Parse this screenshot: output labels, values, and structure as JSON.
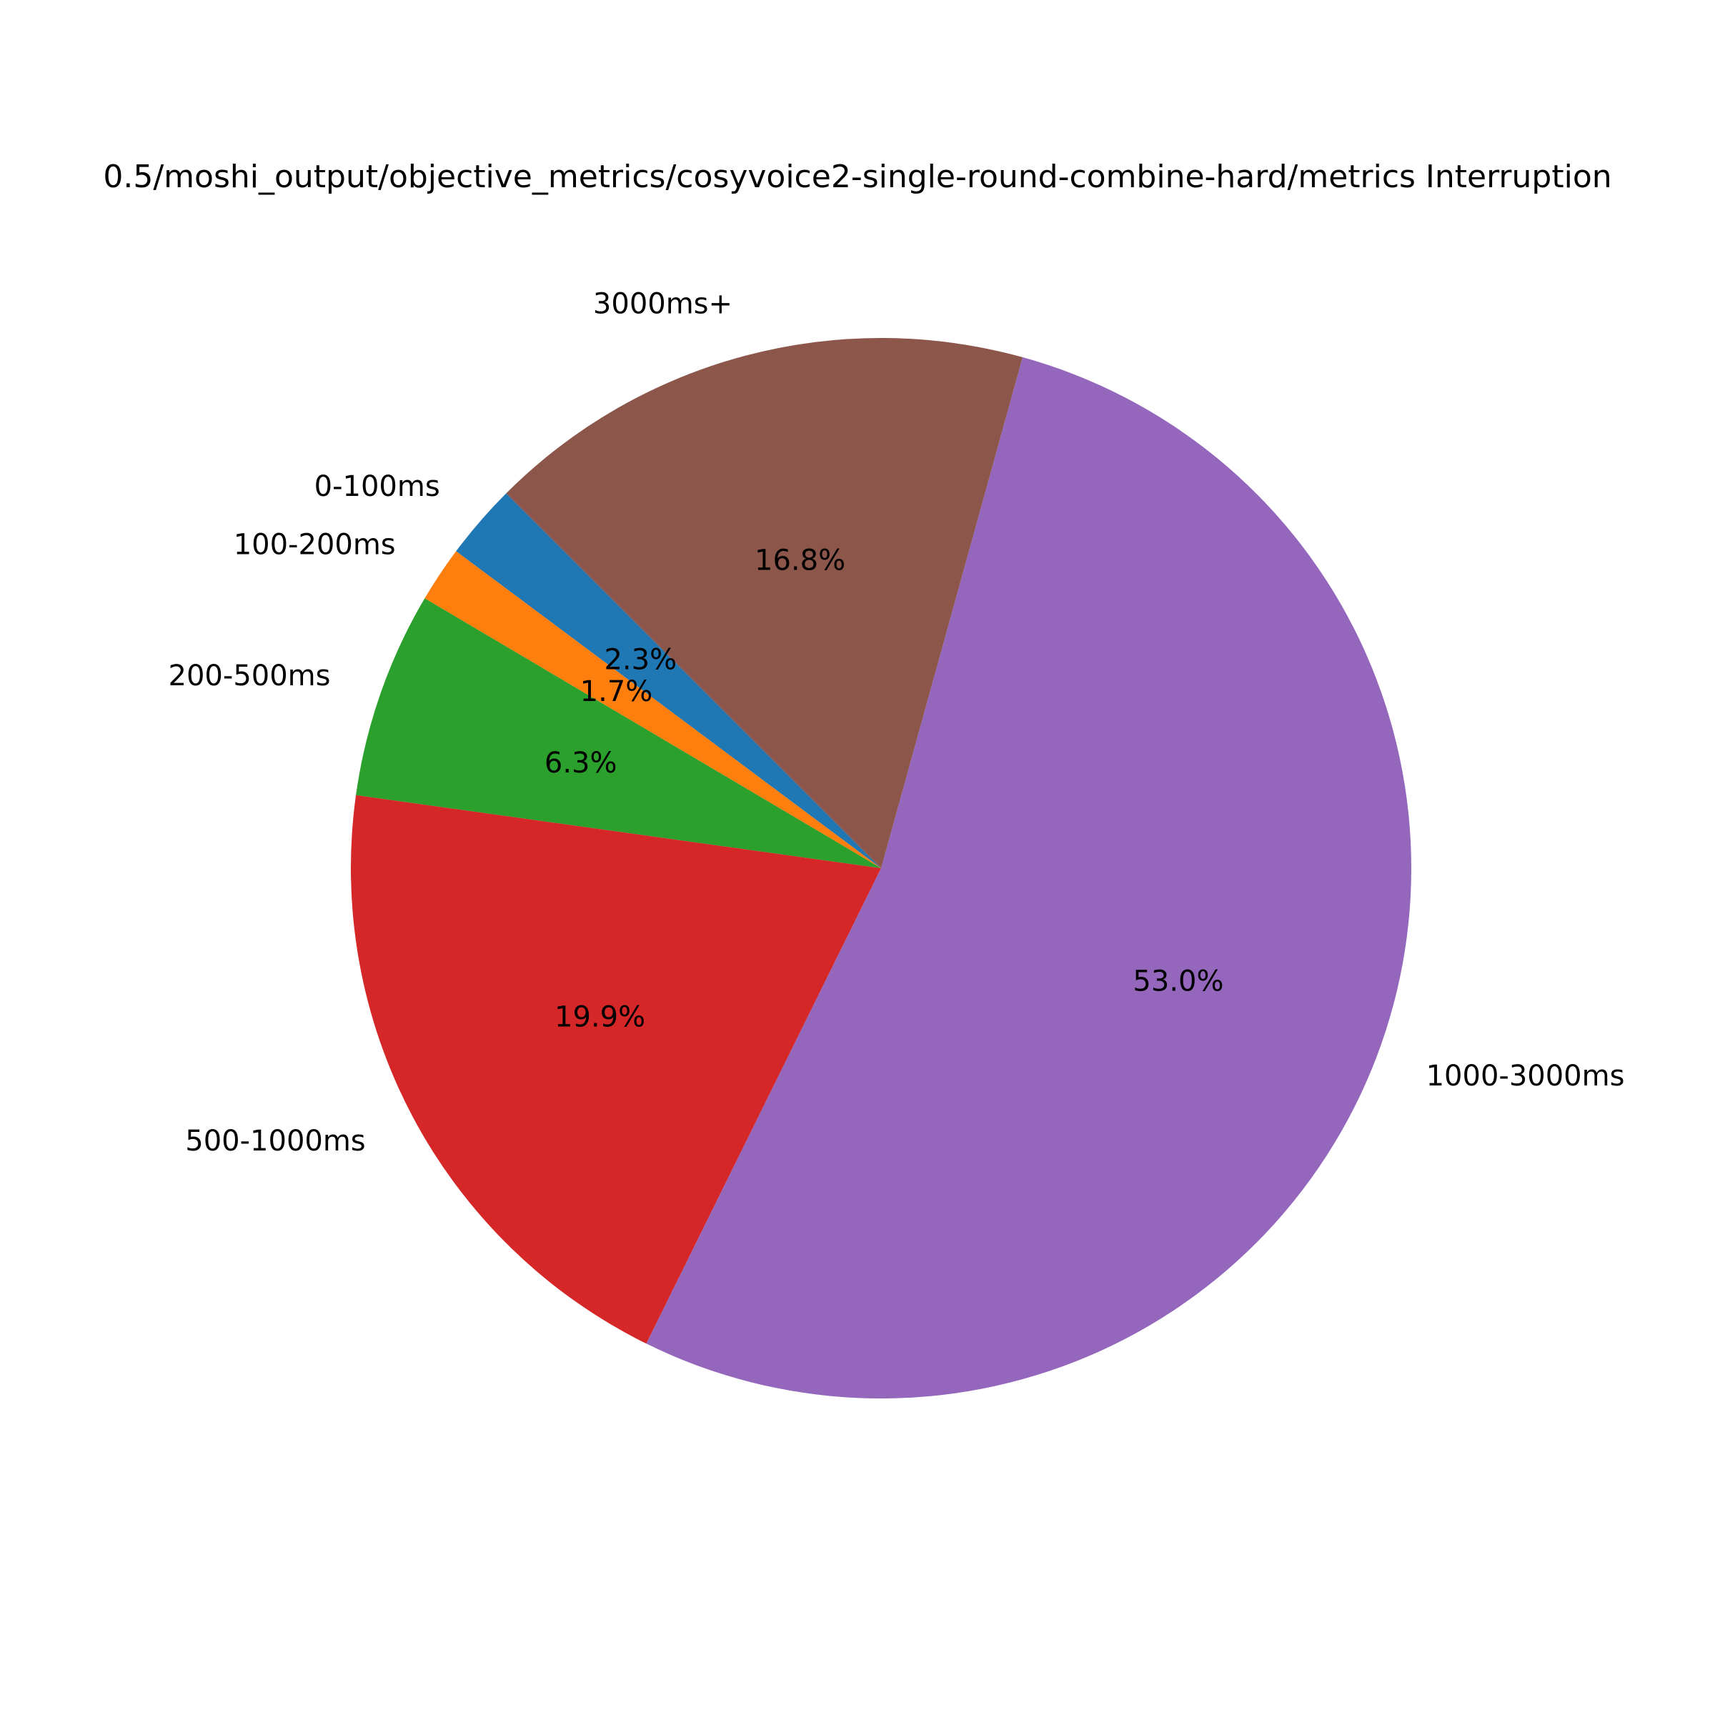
{
  "chart_data": {
    "type": "pie",
    "title": "0.5/moshi_output/objective_metrics/cosyvoice2-single-round-combine-hard/metrics Interruption",
    "start_angle_deg": 135,
    "direction": "counterclockwise",
    "slices": [
      {
        "label": "0-100ms",
        "value": 2.3,
        "pct_label": "2.3%",
        "color": "#1f77b4"
      },
      {
        "label": "100-200ms",
        "value": 1.7,
        "pct_label": "1.7%",
        "color": "#ff7f0e"
      },
      {
        "label": "200-500ms",
        "value": 6.3,
        "pct_label": "6.3%",
        "color": "#2ca02c"
      },
      {
        "label": "500-1000ms",
        "value": 19.9,
        "pct_label": "19.9%",
        "color": "#d62728"
      },
      {
        "label": "1000-3000ms",
        "value": 53.0,
        "pct_label": "53.0%",
        "color": "#9467bd"
      },
      {
        "label": "3000ms+",
        "value": 16.8,
        "pct_label": "16.8%",
        "color": "#8c564b"
      }
    ]
  }
}
